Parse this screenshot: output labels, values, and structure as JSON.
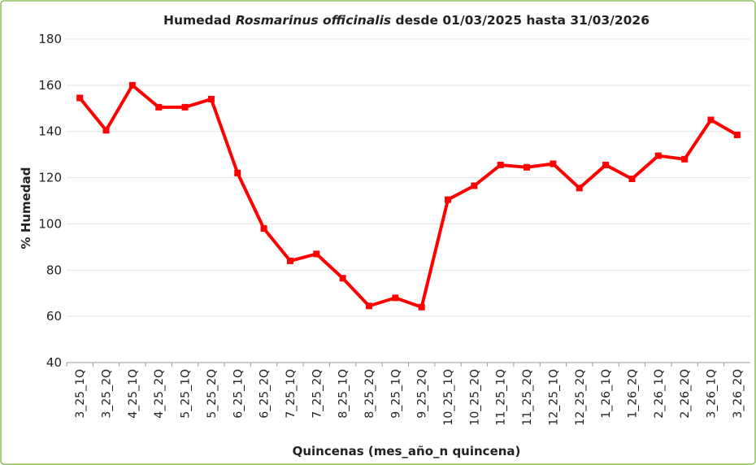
{
  "chart_data": {
    "type": "line",
    "title": "Humedad Rosmarinus officinalis desde 01/03/2025 hasta 31/03/2026",
    "title_italic": "Rosmarinus officinalis",
    "x_label": "Quincenas (mes_año_n quincena)",
    "y_label": "% Humedad",
    "categories": [
      "3_25_1Q",
      "3_25_2Q",
      "4_25_1Q",
      "4_25_2Q",
      "5_25_1Q",
      "5_25_2Q",
      "6_25_1Q",
      "6_25_2Q",
      "7_25_1Q",
      "7_25_2Q",
      "8_25_1Q",
      "8_25_2Q",
      "9_25_1Q",
      "9_25_2Q",
      "10_25_1Q",
      "10_25_2Q",
      "11_25_1Q",
      "11_25_2Q",
      "12_25_1Q",
      "12_25_2Q",
      "1_26_1Q",
      "1_26_2Q",
      "2_26_1Q",
      "2_26_2Q",
      "3_26_1Q",
      "3_26_2Q"
    ],
    "series": [
      {
        "name": "% Humedad",
        "color": "#ff0000",
        "values": [
          154.5,
          140.5,
          160,
          150.5,
          150.5,
          154,
          122,
          98,
          84,
          87,
          76.5,
          64.5,
          68,
          64,
          110.5,
          116.5,
          125.5,
          124.5,
          126,
          115.5,
          125.5,
          119.5,
          129.5,
          128,
          145,
          138.5
        ]
      }
    ],
    "ylim": [
      40,
      180
    ],
    "yticks": [
      40,
      60,
      80,
      100,
      120,
      140,
      160,
      180
    ],
    "grid": true
  }
}
